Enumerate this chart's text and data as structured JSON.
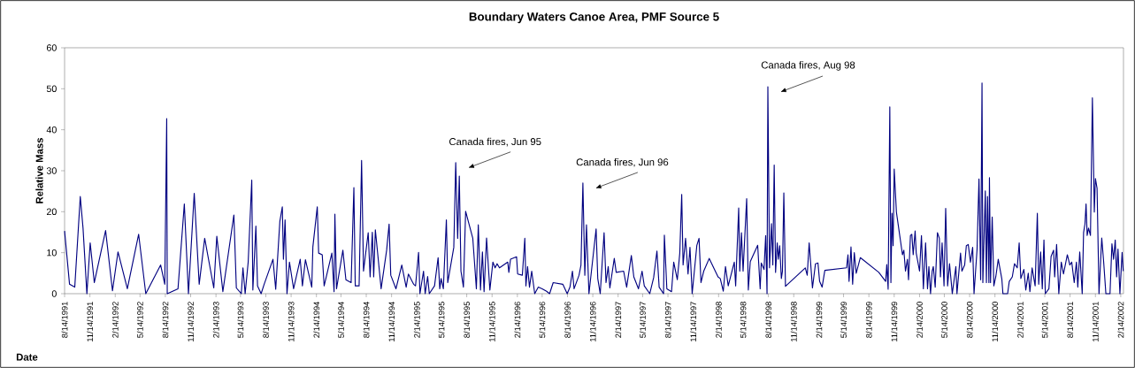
{
  "chart_data": {
    "type": "line",
    "title": "Boundary Waters Canoe Area, PMF Source 5",
    "xlabel": "Date",
    "ylabel": "Relative Mass",
    "color": "#000080",
    "marker": "none",
    "line_style": "solid",
    "xlim": [
      "1991-08-14",
      "2002-02-24"
    ],
    "ylim": [
      0,
      60
    ],
    "yticks": [
      0,
      10,
      20,
      30,
      40,
      50,
      60
    ],
    "xticks": [
      {
        "value": "1991-08-14",
        "label": "8/14/1991"
      },
      {
        "value": "1991-11-14",
        "label": "11/14/1991"
      },
      {
        "value": "1992-02-14",
        "label": "2/14/1992"
      },
      {
        "value": "1992-05-14",
        "label": "5/14/1992"
      },
      {
        "value": "1992-08-14",
        "label": "8/14/1992"
      },
      {
        "value": "1992-11-14",
        "label": "11/14/1992"
      },
      {
        "value": "1993-02-14",
        "label": "2/14/1993"
      },
      {
        "value": "1993-05-14",
        "label": "5/14/1993"
      },
      {
        "value": "1993-08-14",
        "label": "8/14/1993"
      },
      {
        "value": "1993-11-14",
        "label": "11/14/1993"
      },
      {
        "value": "1994-02-14",
        "label": "2/14/1994"
      },
      {
        "value": "1994-05-14",
        "label": "5/14/1994"
      },
      {
        "value": "1994-08-14",
        "label": "8/14/1994"
      },
      {
        "value": "1994-11-14",
        "label": "11/14/1994"
      },
      {
        "value": "1995-02-14",
        "label": "2/14/1995"
      },
      {
        "value": "1995-05-14",
        "label": "5/14/1995"
      },
      {
        "value": "1995-08-14",
        "label": "8/14/1995"
      },
      {
        "value": "1995-11-14",
        "label": "11/14/1995"
      },
      {
        "value": "1996-02-14",
        "label": "2/14/1996"
      },
      {
        "value": "1996-05-14",
        "label": "5/14/1996"
      },
      {
        "value": "1996-08-14",
        "label": "8/14/1996"
      },
      {
        "value": "1996-11-14",
        "label": "11/14/1996"
      },
      {
        "value": "1997-02-14",
        "label": "2/14/1997"
      },
      {
        "value": "1997-05-14",
        "label": "5/14/1997"
      },
      {
        "value": "1997-08-14",
        "label": "8/14/1997"
      },
      {
        "value": "1997-11-14",
        "label": "11/14/1997"
      },
      {
        "value": "1998-02-14",
        "label": "2/14/1998"
      },
      {
        "value": "1998-05-14",
        "label": "5/14/1998"
      },
      {
        "value": "1998-08-14",
        "label": "8/14/1998"
      },
      {
        "value": "1998-11-14",
        "label": "11/14/1998"
      },
      {
        "value": "1999-02-14",
        "label": "2/14/1999"
      },
      {
        "value": "1999-05-14",
        "label": "5/14/1999"
      },
      {
        "value": "1999-08-14",
        "label": "8/14/1999"
      },
      {
        "value": "1999-11-14",
        "label": "11/14/1999"
      },
      {
        "value": "2000-02-14",
        "label": "2/14/2000"
      },
      {
        "value": "2000-05-14",
        "label": "5/14/2000"
      },
      {
        "value": "2000-08-14",
        "label": "8/14/2000"
      },
      {
        "value": "2000-11-14",
        "label": "11/14/2000"
      },
      {
        "value": "2001-02-14",
        "label": "2/14/2001"
      },
      {
        "value": "2001-05-14",
        "label": "5/14/2001"
      },
      {
        "value": "2001-08-14",
        "label": "8/14/2001"
      },
      {
        "value": "2001-11-14",
        "label": "11/14/2001"
      },
      {
        "value": "2002-02-14",
        "label": "2/14/2002"
      }
    ],
    "annotations": [
      {
        "text": "Canada fires, Jun 95",
        "x": "1995-07-05",
        "y": 32.0
      },
      {
        "text": "Canada fires, Jun 96",
        "x": "1996-10-09",
        "y": 27.0
      },
      {
        "text": "Canada fires, Aug 98",
        "x": "1998-08-12",
        "y": 50.5
      }
    ],
    "x": [
      "1991-08-14",
      "1991-09-01",
      "1991-09-20",
      "1991-10-10",
      "1991-10-20",
      "1991-11-03",
      "1991-11-15",
      "1991-11-30",
      "1992-01-10",
      "1992-02-04",
      "1992-02-24",
      "1992-03-29",
      "1992-05-09",
      "1992-06-04",
      "1992-07-28",
      "1992-08-12",
      "1992-08-19",
      "1992-08-21",
      "1992-09-29",
      "1992-10-22",
      "1992-11-06",
      "1992-11-27",
      "1992-12-15",
      "1993-01-04",
      "1993-02-06",
      "1993-02-17",
      "1993-03-11",
      "1993-04-20",
      "1993-04-29",
      "1993-05-17",
      "1993-05-23",
      "1993-05-31",
      "1993-06-11",
      "1993-06-24",
      "1993-06-28",
      "1993-07-09",
      "1993-07-15",
      "1993-07-28",
      "1993-08-08",
      "1993-08-27",
      "1993-09-09",
      "1993-09-19",
      "1993-10-04",
      "1993-10-13",
      "1993-10-17",
      "1993-10-23",
      "1993-10-30",
      "1993-11-08",
      "1993-11-23",
      "1993-12-17",
      "1993-12-25",
      "1994-01-05",
      "1994-01-28",
      "1994-02-01",
      "1994-02-17",
      "1994-02-22",
      "1994-03-07",
      "1994-03-14",
      "1994-04-11",
      "1994-04-19",
      "1994-04-22",
      "1994-04-28",
      "1994-05-21",
      "1994-06-01",
      "1994-06-20",
      "1994-06-30",
      "1994-07-05",
      "1994-07-19",
      "1994-07-28",
      "1994-08-04",
      "1994-08-21",
      "1994-08-28",
      "1994-09-05",
      "1994-09-10",
      "1994-09-16",
      "1994-10-07",
      "1994-10-27",
      "1994-11-05",
      "1994-11-11",
      "1994-11-30",
      "1994-12-21",
      "1995-01-06",
      "1995-01-14",
      "1995-02-02",
      "1995-02-09",
      "1995-02-20",
      "1995-02-25",
      "1995-03-10",
      "1995-03-16",
      "1995-03-25",
      "1995-03-31",
      "1995-04-19",
      "1995-05-02",
      "1995-05-08",
      "1995-05-13",
      "1995-05-21",
      "1995-06-01",
      "1995-06-06",
      "1995-06-28",
      "1995-07-05",
      "1995-07-12",
      "1995-07-18",
      "1995-07-24",
      "1995-08-02",
      "1995-08-10",
      "1995-09-05",
      "1995-09-18",
      "1995-09-25",
      "1995-10-03",
      "1995-10-10",
      "1995-10-16",
      "1995-10-25",
      "1995-11-06",
      "1995-11-17",
      "1995-11-25",
      "1995-12-02",
      "1995-12-11",
      "1996-01-10",
      "1996-01-14",
      "1996-01-20",
      "1996-02-11",
      "1996-02-15",
      "1996-03-03",
      "1996-03-12",
      "1996-03-16",
      "1996-03-22",
      "1996-03-29",
      "1996-04-06",
      "1996-04-17",
      "1996-04-30",
      "1996-05-14",
      "1996-05-30",
      "1996-06-10",
      "1996-06-23",
      "1996-07-28",
      "1996-08-13",
      "1996-08-23",
      "1996-09-01",
      "1996-09-07",
      "1996-09-25",
      "1996-10-02",
      "1996-10-09",
      "1996-10-16",
      "1996-10-22",
      "1996-10-31",
      "1996-11-26",
      "1996-12-02",
      "1996-12-11",
      "1996-12-25",
      "1997-01-01",
      "1997-01-09",
      "1997-01-15",
      "1997-01-31",
      "1997-02-07",
      "1997-03-06",
      "1997-03-17",
      "1997-04-03",
      "1997-04-12",
      "1997-04-29",
      "1997-05-12",
      "1997-05-20",
      "1997-06-09",
      "1997-06-23",
      "1997-07-05",
      "1997-07-13",
      "1997-07-29",
      "1997-08-01",
      "1997-08-10",
      "1997-08-27",
      "1997-09-04",
      "1997-09-17",
      "1997-09-26",
      "1997-10-03",
      "1997-10-08",
      "1997-10-17",
      "1997-10-26",
      "1997-11-02",
      "1997-11-10",
      "1997-11-27",
      "1997-12-05",
      "1997-12-12",
      "1997-12-22",
      "1998-01-11",
      "1998-02-12",
      "1998-02-20",
      "1998-03-03",
      "1998-03-11",
      "1998-03-21",
      "1998-04-12",
      "1998-04-17",
      "1998-04-28",
      "1998-05-02",
      "1998-05-08",
      "1998-05-14",
      "1998-05-27",
      "1998-06-02",
      "1998-06-09",
      "1998-07-06",
      "1998-07-15",
      "1998-07-19",
      "1998-07-29",
      "1998-08-04",
      "1998-08-09",
      "1998-08-12",
      "1998-08-18",
      "1998-08-25",
      "1998-08-30",
      "1998-09-04",
      "1998-09-09",
      "1998-09-15",
      "1998-09-19",
      "1998-09-24",
      "1998-09-30",
      "1998-10-04",
      "1998-10-09",
      "1998-10-15",
      "1998-12-26",
      "1999-01-02",
      "1999-01-09",
      "1999-01-21",
      "1999-02-01",
      "1999-02-10",
      "1999-02-16",
      "1999-02-25",
      "1999-03-07",
      "1999-05-25",
      "1999-05-30",
      "1999-06-03",
      "1999-06-10",
      "1999-06-16",
      "1999-06-22",
      "1999-06-29",
      "1999-07-14",
      "1999-09-19",
      "1999-10-14",
      "1999-10-18",
      "1999-10-23",
      "1999-10-29",
      "1999-11-02",
      "1999-11-06",
      "1999-11-10",
      "1999-11-14",
      "1999-11-22",
      "1999-12-14",
      "1999-12-19",
      "1999-12-25",
      "2000-01-01",
      "2000-01-05",
      "2000-01-12",
      "2000-01-17",
      "2000-01-22",
      "2000-01-29",
      "2000-02-02",
      "2000-02-14",
      "2000-02-21",
      "2000-02-28",
      "2000-03-07",
      "2000-03-14",
      "2000-03-19",
      "2000-03-25",
      "2000-03-31",
      "2000-04-04",
      "2000-04-11",
      "2000-04-19",
      "2000-04-26",
      "2000-04-30",
      "2000-05-06",
      "2000-05-13",
      "2000-05-19",
      "2000-05-26",
      "2000-06-02",
      "2000-06-12",
      "2000-06-25",
      "2000-06-29",
      "2000-07-12",
      "2000-07-17",
      "2000-07-27",
      "2000-08-02",
      "2000-08-09",
      "2000-08-17",
      "2000-08-25",
      "2000-08-30",
      "2000-09-10",
      "2000-09-17",
      "2000-09-23",
      "2000-09-28",
      "2000-10-01",
      "2000-10-10",
      "2000-10-14",
      "2000-10-18",
      "2000-10-23",
      "2000-10-25",
      "2000-10-29",
      "2000-11-04",
      "2000-11-10",
      "2000-11-17",
      "2000-11-26",
      "2000-12-09",
      "2000-12-13",
      "2000-12-30",
      "2001-01-05",
      "2001-01-16",
      "2001-01-24",
      "2001-02-03",
      "2001-02-10",
      "2001-02-16",
      "2001-02-27",
      "2001-03-06",
      "2001-03-15",
      "2001-03-21",
      "2001-03-29",
      "2001-04-09",
      "2001-04-17",
      "2001-04-22",
      "2001-04-29",
      "2001-05-05",
      "2001-05-11",
      "2001-05-16",
      "2001-05-29",
      "2001-06-06",
      "2001-06-15",
      "2001-06-19",
      "2001-06-26",
      "2001-07-04",
      "2001-07-13",
      "2001-07-21",
      "2001-08-04",
      "2001-08-13",
      "2001-08-20",
      "2001-08-29",
      "2001-09-06",
      "2001-09-11",
      "2001-09-18",
      "2001-09-27",
      "2001-10-02",
      "2001-10-07",
      "2001-10-11",
      "2001-10-15",
      "2001-10-20",
      "2001-10-27",
      "2001-11-03",
      "2001-11-10",
      "2001-11-14",
      "2001-11-20",
      "2001-11-27",
      "2001-12-07",
      "2001-12-14",
      "2001-12-22",
      "2002-01-06",
      "2002-01-13",
      "2002-01-19",
      "2002-01-25",
      "2002-01-30",
      "2002-02-04",
      "2002-02-11",
      "2002-02-19",
      "2002-02-23"
    ],
    "values": [
      15.3,
      2.3,
      1.6,
      23.7,
      16.0,
      0,
      12.4,
      2.7,
      15.4,
      0.7,
      10.2,
      1.2,
      14.5,
      0,
      7.0,
      2.3,
      42.7,
      0,
      1.2,
      21.9,
      0,
      24.5,
      2.3,
      13.5,
      1.4,
      14.0,
      0.5,
      19.2,
      1.4,
      0,
      6.3,
      0,
      7.7,
      27.7,
      0.9,
      16.5,
      1.9,
      0,
      2.3,
      5.9,
      8.4,
      1.1,
      17.6,
      21.2,
      8.4,
      18.0,
      0,
      7.7,
      1.2,
      8.4,
      1.9,
      8.3,
      1.6,
      11.4,
      21.2,
      9.9,
      9.5,
      1.9,
      9.9,
      0.5,
      19.4,
      1.2,
      10.6,
      3.4,
      2.7,
      25.9,
      1.9,
      1.9,
      32.5,
      5.5,
      14.9,
      4.1,
      15.0,
      4.1,
      15.6,
      1.2,
      10.6,
      17.0,
      4.5,
      1.2,
      7.0,
      1.6,
      4.8,
      2.3,
      1.9,
      10.1,
      0,
      5.5,
      0,
      4.2,
      0,
      1.9,
      8.8,
      1.2,
      3.7,
      1.2,
      18.0,
      2.7,
      11.3,
      32.0,
      13.5,
      28.7,
      5.5,
      1.6,
      20.1,
      13.5,
      1.2,
      16.8,
      0.9,
      10.2,
      0.5,
      13.6,
      0.9,
      7.7,
      6.3,
      7.3,
      6.3,
      7.7,
      5.2,
      8.4,
      9.0,
      4.8,
      4.5,
      13.5,
      1.9,
      6.6,
      1.6,
      5.5,
      0,
      1.6,
      1.2,
      0.6,
      0,
      2.7,
      2.3,
      0,
      1.6,
      5.5,
      1.2,
      4.5,
      7.0,
      27.0,
      4.5,
      16.8,
      0,
      15.8,
      3.7,
      0,
      14.9,
      2.7,
      6.6,
      1.4,
      8.6,
      5.2,
      5.5,
      1.6,
      9.3,
      4.1,
      1.2,
      5.5,
      1.9,
      0,
      3.9,
      10.4,
      1.6,
      0,
      14.3,
      1.2,
      0.5,
      7.7,
      3.4,
      9.9,
      24.2,
      7.0,
      13.5,
      4.8,
      11.3,
      0,
      11.8,
      13.5,
      2.7,
      5.5,
      8.6,
      4.1,
      3.7,
      0.6,
      6.6,
      1.9,
      7.7,
      1.9,
      20.9,
      5.5,
      14.9,
      5.5,
      23.2,
      0.9,
      7.8,
      11.8,
      1.2,
      7.5,
      5.9,
      14.2,
      0,
      50.5,
      6.3,
      17.1,
      7.0,
      31.4,
      5.2,
      12.4,
      8.4,
      11.7,
      3.7,
      5.5,
      24.6,
      1.8,
      6.3,
      4.5,
      12.4,
      1.4,
      7.3,
      7.5,
      3.0,
      1.6,
      5.7,
      6.3,
      9.5,
      3.0,
      11.4,
      2.3,
      10.0,
      5.0,
      8.8,
      5.2,
      3.0,
      7.1,
      1.1,
      45.6,
      2.7,
      19.6,
      11.7,
      30.4,
      19.9,
      9.5,
      10.6,
      5.5,
      8.4,
      3.4,
      14.2,
      14.5,
      9.5,
      15.3,
      9.9,
      5.5,
      14.2,
      1.2,
      12.4,
      1.2,
      6.6,
      0,
      5.5,
      6.6,
      1.6,
      14.9,
      13.5,
      4.1,
      12.4,
      1.9,
      20.8,
      1.9,
      7.3,
      0,
      6.6,
      0,
      9.9,
      5.5,
      7.0,
      11.7,
      12.0,
      7.7,
      11.3,
      0,
      10.8,
      28.0,
      3.4,
      51.4,
      2.7,
      25.1,
      2.7,
      23.7,
      2.7,
      28.3,
      2.7,
      18.7,
      1.9,
      4.1,
      8.4,
      3.6,
      0,
      0,
      3.0,
      4.1,
      7.3,
      6.3,
      12.4,
      3.7,
      5.9,
      0.9,
      5.0,
      0.5,
      6.3,
      1.9,
      19.6,
      2.3,
      10.2,
      1.2,
      13.1,
      0,
      1.2,
      9.1,
      10.6,
      4.1,
      12.0,
      0,
      7.7,
      4.8,
      9.5,
      7.0,
      7.7,
      2.7,
      7.7,
      1.6,
      10.2,
      0,
      14.9,
      17.0,
      21.9,
      14.2,
      16.0,
      14.2,
      47.8,
      19.9,
      28.1,
      25.7,
      0,
      13.6,
      7.7,
      0,
      0,
      12.2,
      8.4,
      13.1,
      4.1,
      10.9,
      0,
      10.1,
      5.5
    ]
  }
}
